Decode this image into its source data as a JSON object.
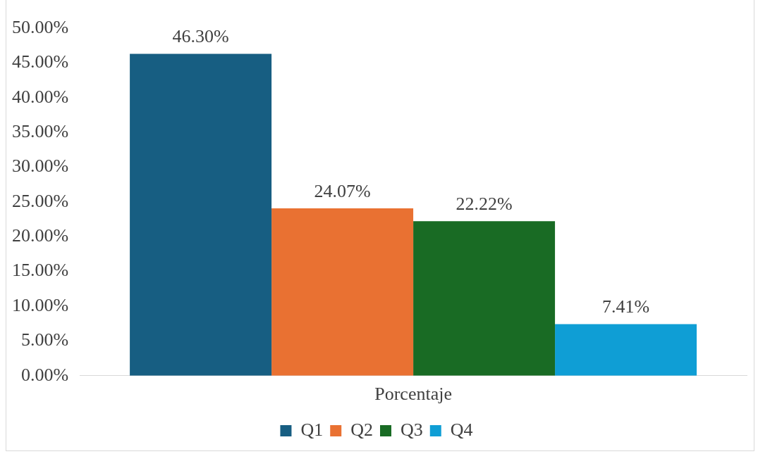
{
  "chart_data": {
    "type": "bar",
    "xlabel": null,
    "categories": [
      "Porcentaje"
    ],
    "series": [
      {
        "name": "Q1",
        "color": "#175e82",
        "values": [
          46.3
        ],
        "value_labels": [
          "46.30%"
        ]
      },
      {
        "name": "Q2",
        "color": "#e97132",
        "values": [
          24.07
        ],
        "value_labels": [
          "24.07%"
        ]
      },
      {
        "name": "Q3",
        "color": "#196b24",
        "values": [
          22.22
        ],
        "value_labels": [
          "22.22%"
        ]
      },
      {
        "name": "Q4",
        "color": "#0f9ed5",
        "values": [
          7.41
        ],
        "value_labels": [
          "7.41%"
        ]
      }
    ],
    "ylim": [
      0,
      50
    ],
    "yticks": [
      {
        "value": 0,
        "label": "0.00%"
      },
      {
        "value": 5,
        "label": "5.00%"
      },
      {
        "value": 10,
        "label": "10.00%"
      },
      {
        "value": 15,
        "label": "15.00%"
      },
      {
        "value": 20,
        "label": "20.00%"
      },
      {
        "value": 25,
        "label": "25.00%"
      },
      {
        "value": 30,
        "label": "30.00%"
      },
      {
        "value": 35,
        "label": "35.00%"
      },
      {
        "value": 40,
        "label": "40.00%"
      },
      {
        "value": 45,
        "label": "45.00%"
      },
      {
        "value": 50,
        "label": "50.00%"
      }
    ],
    "grid": false,
    "legend": "bottom"
  }
}
